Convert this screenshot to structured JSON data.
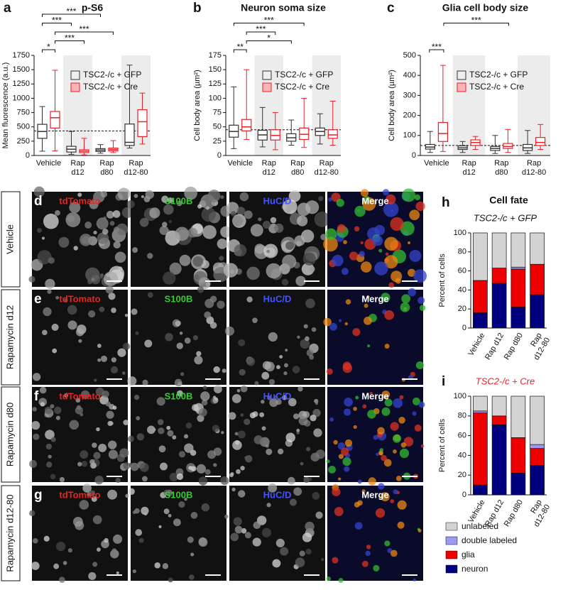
{
  "chart_data": [
    {
      "type": "box",
      "letter": "a",
      "title": "p-S6",
      "ylabel": "Mean fluorescence (a.u.)",
      "categories": [
        "Vehicle",
        "Rap\nd12",
        "Rap\nd80",
        "Rap\nd12-80"
      ],
      "series": [
        {
          "name": "TSC2-/c + GFP",
          "color": "#333333",
          "values": [
            {
              "min": 75,
              "q1": 300,
              "median": 420,
              "q3": 545,
              "max": 855
            },
            {
              "min": 20,
              "q1": 60,
              "median": 110,
              "q3": 160,
              "max": 420
            },
            {
              "min": 40,
              "q1": 70,
              "median": 95,
              "q3": 120,
              "max": 190
            },
            {
              "min": 130,
              "q1": 175,
              "median": 230,
              "q3": 550,
              "max": 1580
            }
          ]
        },
        {
          "name": "TSC2-/c + Cre",
          "color": "#e8202a",
          "values": [
            {
              "min": 80,
              "q1": 480,
              "median": 660,
              "q3": 770,
              "max": 1490
            },
            {
              "min": 10,
              "q1": 50,
              "median": 75,
              "q3": 100,
              "max": 300
            },
            {
              "min": 50,
              "q1": 80,
              "median": 105,
              "q3": 130,
              "max": 260
            },
            {
              "min": 200,
              "q1": 330,
              "median": 590,
              "q3": 800,
              "max": 1090
            }
          ]
        }
      ],
      "ylim": [
        0,
        1750
      ],
      "yticks": [
        0,
        250,
        500,
        750,
        1000,
        1250,
        1500,
        1750
      ],
      "reference_line": 430,
      "significance": [
        "*",
        "***",
        "***",
        "***",
        "***"
      ]
    },
    {
      "type": "box",
      "letter": "b",
      "title": "Neuron soma size",
      "ylabel": "Cell body area (µm²)",
      "categories": [
        "Vehicle",
        "Rap\nd12",
        "Rap\nd80",
        "Rap\nd12-80"
      ],
      "series": [
        {
          "name": "TSC2-/c + GFP",
          "color": "#333333",
          "values": [
            {
              "min": 12,
              "q1": 32,
              "median": 42,
              "q3": 53,
              "max": 120
            },
            {
              "min": 15,
              "q1": 27,
              "median": 36,
              "q3": 44,
              "max": 84
            },
            {
              "min": 18,
              "q1": 25,
              "median": 31,
              "q3": 38,
              "max": 62
            },
            {
              "min": 20,
              "q1": 35,
              "median": 42,
              "q3": 48,
              "max": 73
            }
          ]
        },
        {
          "name": "TSC2-/c + Cre",
          "color": "#e8202a",
          "values": [
            {
              "min": 28,
              "q1": 43,
              "median": 50,
              "q3": 63,
              "max": 150
            },
            {
              "min": 10,
              "q1": 27,
              "median": 35,
              "q3": 45,
              "max": 75
            },
            {
              "min": 14,
              "q1": 28,
              "median": 37,
              "q3": 48,
              "max": 100
            },
            {
              "min": 18,
              "q1": 30,
              "median": 36,
              "q3": 45,
              "max": 95
            }
          ]
        }
      ],
      "ylim": [
        0,
        175
      ],
      "yticks": [
        0,
        25,
        50,
        75,
        100,
        125,
        150,
        175
      ],
      "reference_line": 45,
      "significance": [
        "**",
        "*",
        "***",
        "***"
      ]
    },
    {
      "type": "box",
      "letter": "c",
      "title": "Glia cell body size",
      "ylabel": "Cell body area (µm²)",
      "categories": [
        "Vehicle",
        "Rap\nd12",
        "Rap\nd80",
        "Rap\nd12-80"
      ],
      "series": [
        {
          "name": "TSC2-/c + GFP",
          "color": "#333333",
          "values": [
            {
              "min": 15,
              "q1": 32,
              "median": 42,
              "q3": 55,
              "max": 120
            },
            {
              "min": 15,
              "q1": 30,
              "median": 38,
              "q3": 48,
              "max": 70
            },
            {
              "min": 10,
              "q1": 25,
              "median": 35,
              "q3": 45,
              "max": 100
            },
            {
              "min": 10,
              "q1": 25,
              "median": 38,
              "q3": 55,
              "max": 125
            }
          ]
        },
        {
          "name": "TSC2-/c + Cre",
          "color": "#e8202a",
          "values": [
            {
              "min": 20,
              "q1": 70,
              "median": 110,
              "q3": 165,
              "max": 450
            },
            {
              "min": 30,
              "q1": 50,
              "median": 65,
              "q3": 78,
              "max": 95
            },
            {
              "min": 15,
              "q1": 35,
              "median": 45,
              "q3": 60,
              "max": 130
            },
            {
              "min": 30,
              "q1": 50,
              "median": 65,
              "q3": 90,
              "max": 155
            }
          ]
        }
      ],
      "ylim": [
        0,
        500
      ],
      "yticks": [
        0,
        100,
        200,
        300,
        400,
        500
      ],
      "reference_line": 50,
      "significance": [
        "***",
        "***"
      ]
    },
    {
      "type": "stacked",
      "letter": "h",
      "title": "Cell fate",
      "subtitle": "TSC2-/c + GFP",
      "subtitle_color": "#111111",
      "ylabel": "Percent of cells",
      "categories": [
        "Vehicle",
        "Rap d12",
        "Rap d80",
        "Rap\nd12-80"
      ],
      "series": [
        {
          "color": "#00007f",
          "values": [
            16,
            47,
            22,
            35
          ]
        },
        {
          "color": "#ee0000",
          "values": [
            34,
            16,
            40,
            32
          ]
        },
        {
          "color": "#9a9af0",
          "values": [
            0,
            0,
            2,
            0
          ]
        },
        {
          "color": "#d3d3d3",
          "values": [
            50,
            37,
            36,
            33
          ]
        }
      ],
      "ylim": [
        0,
        100
      ],
      "yticks": [
        0,
        20,
        40,
        60,
        80,
        100
      ]
    },
    {
      "type": "stacked",
      "letter": "i",
      "subtitle": "TSC2-/c + Cre",
      "subtitle_color": "#e8202a",
      "ylabel": "Percent of cells",
      "categories": [
        "Vehicle",
        "Rap d12",
        "Rap d80",
        "Rap\nd12-80"
      ],
      "series": [
        {
          "name": "neuron",
          "color": "#00007f",
          "values": [
            10,
            71,
            22,
            30
          ]
        },
        {
          "name": "glia",
          "color": "#ee0000",
          "values": [
            73,
            9,
            36,
            17
          ]
        },
        {
          "name": "double labeled",
          "color": "#9a9af0",
          "values": [
            2,
            0,
            0,
            4
          ]
        },
        {
          "name": "unlabeled",
          "color": "#d3d3d3",
          "values": [
            15,
            20,
            42,
            49
          ]
        }
      ],
      "ylim": [
        0,
        100
      ],
      "yticks": [
        0,
        20,
        40,
        60,
        80,
        100
      ]
    }
  ],
  "micrographs": {
    "rows": [
      {
        "letter": "d",
        "condition": "Vehicle",
        "channels": [
          "tdTomato",
          "S100B",
          "HuC/D",
          "Merge"
        ]
      },
      {
        "letter": "e",
        "condition": "Rapamycin d12",
        "channels": [
          "tdTomato",
          "S100B",
          "HuC/D",
          "Merge"
        ]
      },
      {
        "letter": "f",
        "condition": "Rapamycin d80",
        "channels": [
          "tdTomato",
          "S100B",
          "HuC/D",
          "Merge"
        ]
      },
      {
        "letter": "g",
        "condition": "Rapamycin d12-80",
        "channels": [
          "tdTomato",
          "S100B",
          "HuC/D",
          "Merge"
        ]
      }
    ]
  }
}
